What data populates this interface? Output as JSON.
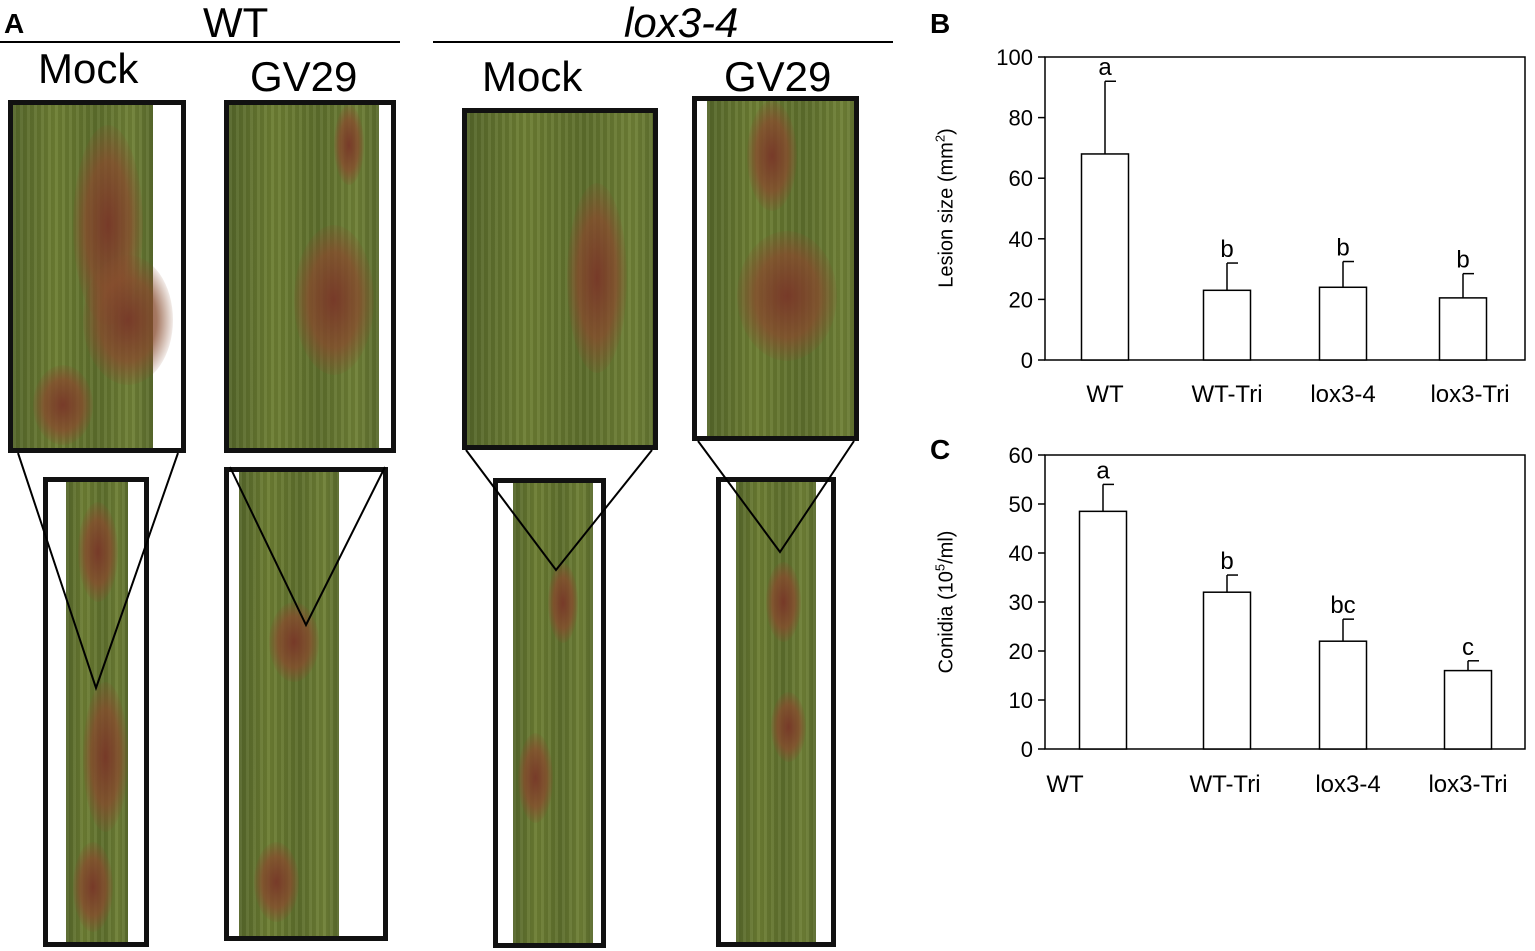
{
  "panels": {
    "a": "A",
    "b": "B",
    "c": "C"
  },
  "groups": [
    {
      "title": "WT",
      "conditions": [
        "Mock",
        "GV29"
      ]
    },
    {
      "title": "lox3-4",
      "conditions": [
        "Mock",
        "GV29"
      ]
    }
  ],
  "colors": {
    "leaf_green": "#6d7e33",
    "lesion_brown": "#7a3a28",
    "bar_fill": "#ffffff",
    "axis": "#000000"
  },
  "chart_data": [
    {
      "panel": "B",
      "type": "bar",
      "categories": [
        "WT",
        "WT-Tri",
        "lox3-4",
        "lox3-Tri"
      ],
      "values": [
        68,
        23,
        24,
        20.5
      ],
      "errors": [
        24,
        9,
        8.5,
        8
      ],
      "annotations": [
        "a",
        "b",
        "b",
        "b"
      ],
      "ylabel": "Lesion size (mm",
      "ylabel_sup": "2",
      "ylabel_suffix": ")",
      "ylim": [
        0,
        100
      ],
      "yticks": [
        0,
        20,
        40,
        60,
        80,
        100
      ],
      "grid": false
    },
    {
      "panel": "C",
      "type": "bar",
      "categories": [
        "WT",
        "WT-Tri",
        "lox3-4",
        "lox3-Tri"
      ],
      "values": [
        48.5,
        32,
        22,
        16
      ],
      "errors": [
        5.5,
        3.5,
        4.5,
        2
      ],
      "annotations": [
        "a",
        "b",
        "bc",
        "c"
      ],
      "ylabel": "Conidia (10",
      "ylabel_sup": "5",
      "ylabel_suffix": "/ml)",
      "ylim": [
        0,
        60
      ],
      "yticks": [
        0,
        10,
        20,
        30,
        40,
        50,
        60
      ],
      "grid": false
    }
  ]
}
